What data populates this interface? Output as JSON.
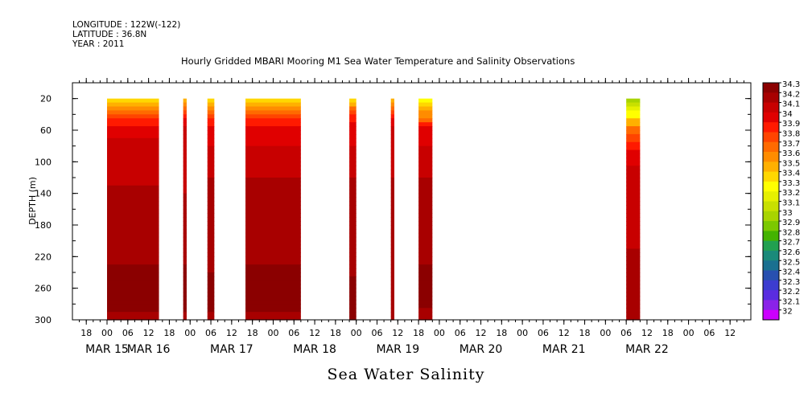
{
  "header": {
    "longitude": "LONGITUDE : 122W(-122)",
    "latitude": "LATITUDE : 36.8N",
    "year": "YEAR : 2011"
  },
  "chart_data": {
    "type": "heatmap",
    "title": "Hourly Gridded MBARI Mooring M1 Sea Water Temperature and Salinity Observations",
    "xlabel": "Sea Water Salinity",
    "ylabel": "DEPTH (m)",
    "y_range": [
      0,
      300
    ],
    "y_reversed": true,
    "y_ticks": [
      20,
      60,
      100,
      140,
      180,
      220,
      260,
      300
    ],
    "x_range_hours": [
      -10,
      186
    ],
    "x_hour_ticks": [
      {
        "h": -6,
        "label": "18"
      },
      {
        "h": 0,
        "label": "00"
      },
      {
        "h": 6,
        "label": "06"
      },
      {
        "h": 12,
        "label": "12"
      },
      {
        "h": 18,
        "label": "18"
      },
      {
        "h": 24,
        "label": "00"
      },
      {
        "h": 30,
        "label": "06"
      },
      {
        "h": 36,
        "label": "12"
      },
      {
        "h": 42,
        "label": "18"
      },
      {
        "h": 48,
        "label": "00"
      },
      {
        "h": 54,
        "label": "06"
      },
      {
        "h": 60,
        "label": "12"
      },
      {
        "h": 66,
        "label": "18"
      },
      {
        "h": 72,
        "label": "00"
      },
      {
        "h": 78,
        "label": "06"
      },
      {
        "h": 84,
        "label": "12"
      },
      {
        "h": 90,
        "label": "18"
      },
      {
        "h": 96,
        "label": "00"
      },
      {
        "h": 102,
        "label": "06"
      },
      {
        "h": 108,
        "label": "12"
      },
      {
        "h": 114,
        "label": "18"
      },
      {
        "h": 120,
        "label": "00"
      },
      {
        "h": 126,
        "label": "06"
      },
      {
        "h": 132,
        "label": "12"
      },
      {
        "h": 138,
        "label": "18"
      },
      {
        "h": 144,
        "label": "00"
      },
      {
        "h": 150,
        "label": "06"
      },
      {
        "h": 156,
        "label": "12"
      },
      {
        "h": 162,
        "label": "18"
      },
      {
        "h": 168,
        "label": "00"
      },
      {
        "h": 174,
        "label": "06"
      },
      {
        "h": 180,
        "label": "12"
      }
    ],
    "date_labels": [
      {
        "h": 0,
        "label": "MAR 15"
      },
      {
        "h": 12,
        "label": "MAR 16"
      },
      {
        "h": 36,
        "label": "MAR 17"
      },
      {
        "h": 60,
        "label": "MAR 18"
      },
      {
        "h": 84,
        "label": "MAR 19"
      },
      {
        "h": 108,
        "label": "MAR 20"
      },
      {
        "h": 132,
        "label": "MAR 21"
      },
      {
        "h": 156,
        "label": "MAR 22"
      }
    ],
    "colorbar": {
      "levels": [
        "34.3",
        "34.2",
        "34.1",
        "34",
        "33.9",
        "33.8",
        "33.7",
        "33.6",
        "33.5",
        "33.4",
        "33.3",
        "33.2",
        "33.1",
        "33",
        "32.9",
        "32.8",
        "32.7",
        "32.6",
        "32.5",
        "32.4",
        "32.3",
        "32.2",
        "32.1",
        "32"
      ],
      "colors": [
        "#8b0000",
        "#a80000",
        "#c80000",
        "#e00000",
        "#ff1a00",
        "#ff4400",
        "#ff6a00",
        "#ff8c00",
        "#ffb000",
        "#ffd700",
        "#ffff00",
        "#e6f000",
        "#c8e000",
        "#a8d400",
        "#7cc800",
        "#44b300",
        "#22a050",
        "#1a8a7a",
        "#1a7090",
        "#2850b0",
        "#3c3cd0",
        "#5a2ce0",
        "#8a22e8",
        "#cc00ff"
      ]
    },
    "segments": [
      {
        "start_h": 0,
        "end_h": 15,
        "profile": {
          "20": 33.4,
          "40": 33.8,
          "60": 34.0,
          "80": 34.1,
          "120": 34.1,
          "140": 34.2,
          "220": 34.2,
          "240": 34.3,
          "280": 34.3,
          "300": 34.2
        }
      },
      {
        "start_h": 22,
        "end_h": 23,
        "profile": {
          "20": 33.4,
          "40": 33.9,
          "60": 34.1,
          "220": 34.2,
          "240": 34.3,
          "280": 34.3,
          "300": 34.2
        }
      },
      {
        "start_h": 29,
        "end_h": 31,
        "profile": {
          "20": 33.3,
          "40": 33.8,
          "60": 34.0,
          "100": 34.1,
          "140": 34.2,
          "230": 34.2,
          "250": 34.3,
          "280": 34.3,
          "300": 34.2
        }
      },
      {
        "start_h": 40,
        "end_h": 56,
        "profile": {
          "20": 33.4,
          "40": 33.8,
          "60": 34.0,
          "100": 34.1,
          "140": 34.2,
          "220": 34.2,
          "240": 34.3,
          "280": 34.3,
          "300": 34.2
        }
      },
      {
        "start_h": 70,
        "end_h": 72,
        "profile": {
          "20": 33.3,
          "40": 33.9,
          "60": 34.0,
          "100": 34.1,
          "140": 34.2,
          "240": 34.2,
          "250": 34.3,
          "290": 34.3
        }
      },
      {
        "start_h": 82,
        "end_h": 83,
        "profile": {
          "20": 33.4,
          "40": 33.9,
          "60": 34.1,
          "100": 34.1,
          "140": 34.2,
          "290": 34.2
        }
      },
      {
        "start_h": 90,
        "end_h": 94,
        "profile": {
          "20": 33.3,
          "40": 33.6,
          "60": 34.0,
          "100": 34.1,
          "140": 34.2,
          "220": 34.2,
          "240": 34.3,
          "270": 34.3,
          "300": 34.2
        }
      },
      {
        "start_h": 150,
        "end_h": 154,
        "profile": {
          "20": 33.0,
          "40": 33.3,
          "60": 33.7,
          "90": 34.0,
          "120": 34.1,
          "200": 34.1,
          "220": 34.2,
          "300": 34.2
        }
      }
    ]
  }
}
